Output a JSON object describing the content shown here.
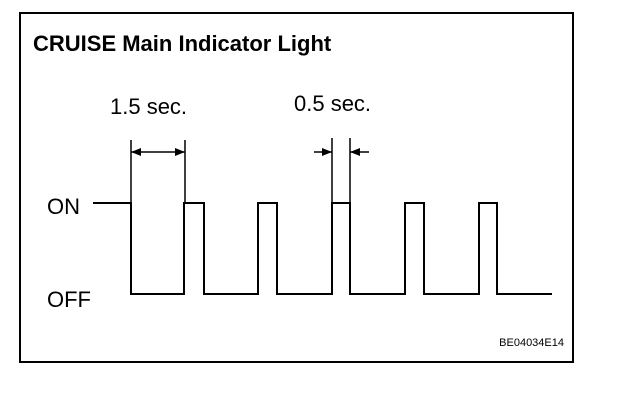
{
  "title": "CRUISE Main Indicator Light",
  "dimensions": {
    "first_interval": "1.5 sec.",
    "second_interval": "0.5 sec."
  },
  "levels": {
    "on": "ON",
    "off": "OFF"
  },
  "figure_code": "BE04034E14"
}
